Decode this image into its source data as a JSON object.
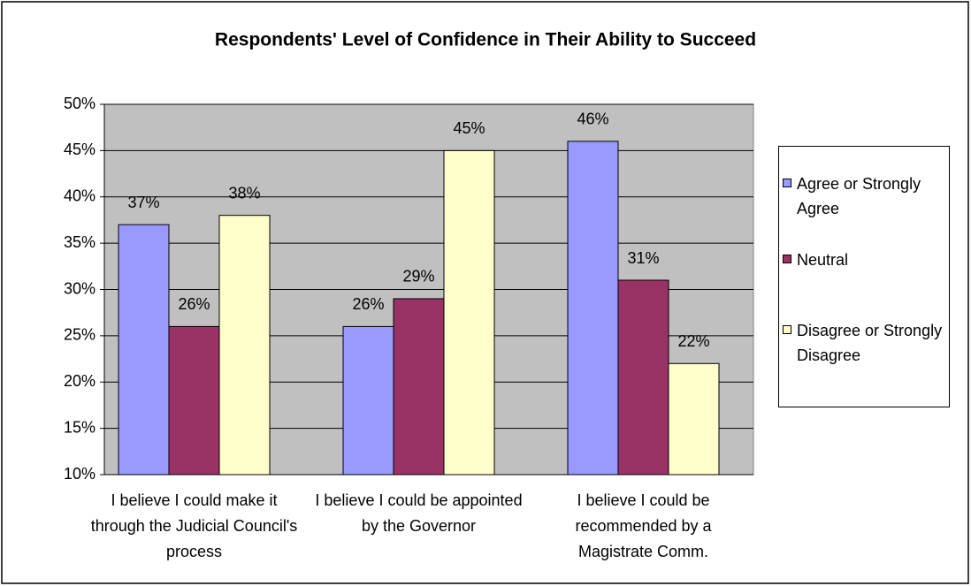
{
  "chart_data": {
    "type": "bar",
    "title": "Respondents' Level of Confidence in Their Ability to Succeed",
    "categories": [
      "I believe I could make it through the Judicial Council's process",
      "I believe I could be appointed by the Governor",
      "I believe I could be recommended by a Magistrate Comm."
    ],
    "series": [
      {
        "name": "Agree or Strongly Agree",
        "color": "#9999ff",
        "values": [
          37,
          26,
          46
        ],
        "value_labels": [
          "37%",
          "26%",
          "46%"
        ]
      },
      {
        "name": "Neutral",
        "color": "#993366",
        "values": [
          26,
          29,
          31
        ],
        "value_labels": [
          "26%",
          "29%",
          "31%"
        ]
      },
      {
        "name": "Disagree or Strongly Disagree",
        "color": "#ffffcc",
        "values": [
          38,
          45,
          22
        ],
        "value_labels": [
          "38%",
          "45%",
          "22%"
        ]
      }
    ],
    "ylim": [
      10,
      50
    ],
    "yticks": [
      {
        "value": 10,
        "label": "10%"
      },
      {
        "value": 15,
        "label": "15%"
      },
      {
        "value": 20,
        "label": "20%"
      },
      {
        "value": 25,
        "label": "25%"
      },
      {
        "value": 30,
        "label": "30%"
      },
      {
        "value": 35,
        "label": "35%"
      },
      {
        "value": 40,
        "label": "40%"
      },
      {
        "value": 45,
        "label": "45%"
      },
      {
        "value": 50,
        "label": "50%"
      }
    ],
    "grid": true,
    "legend": "right"
  }
}
